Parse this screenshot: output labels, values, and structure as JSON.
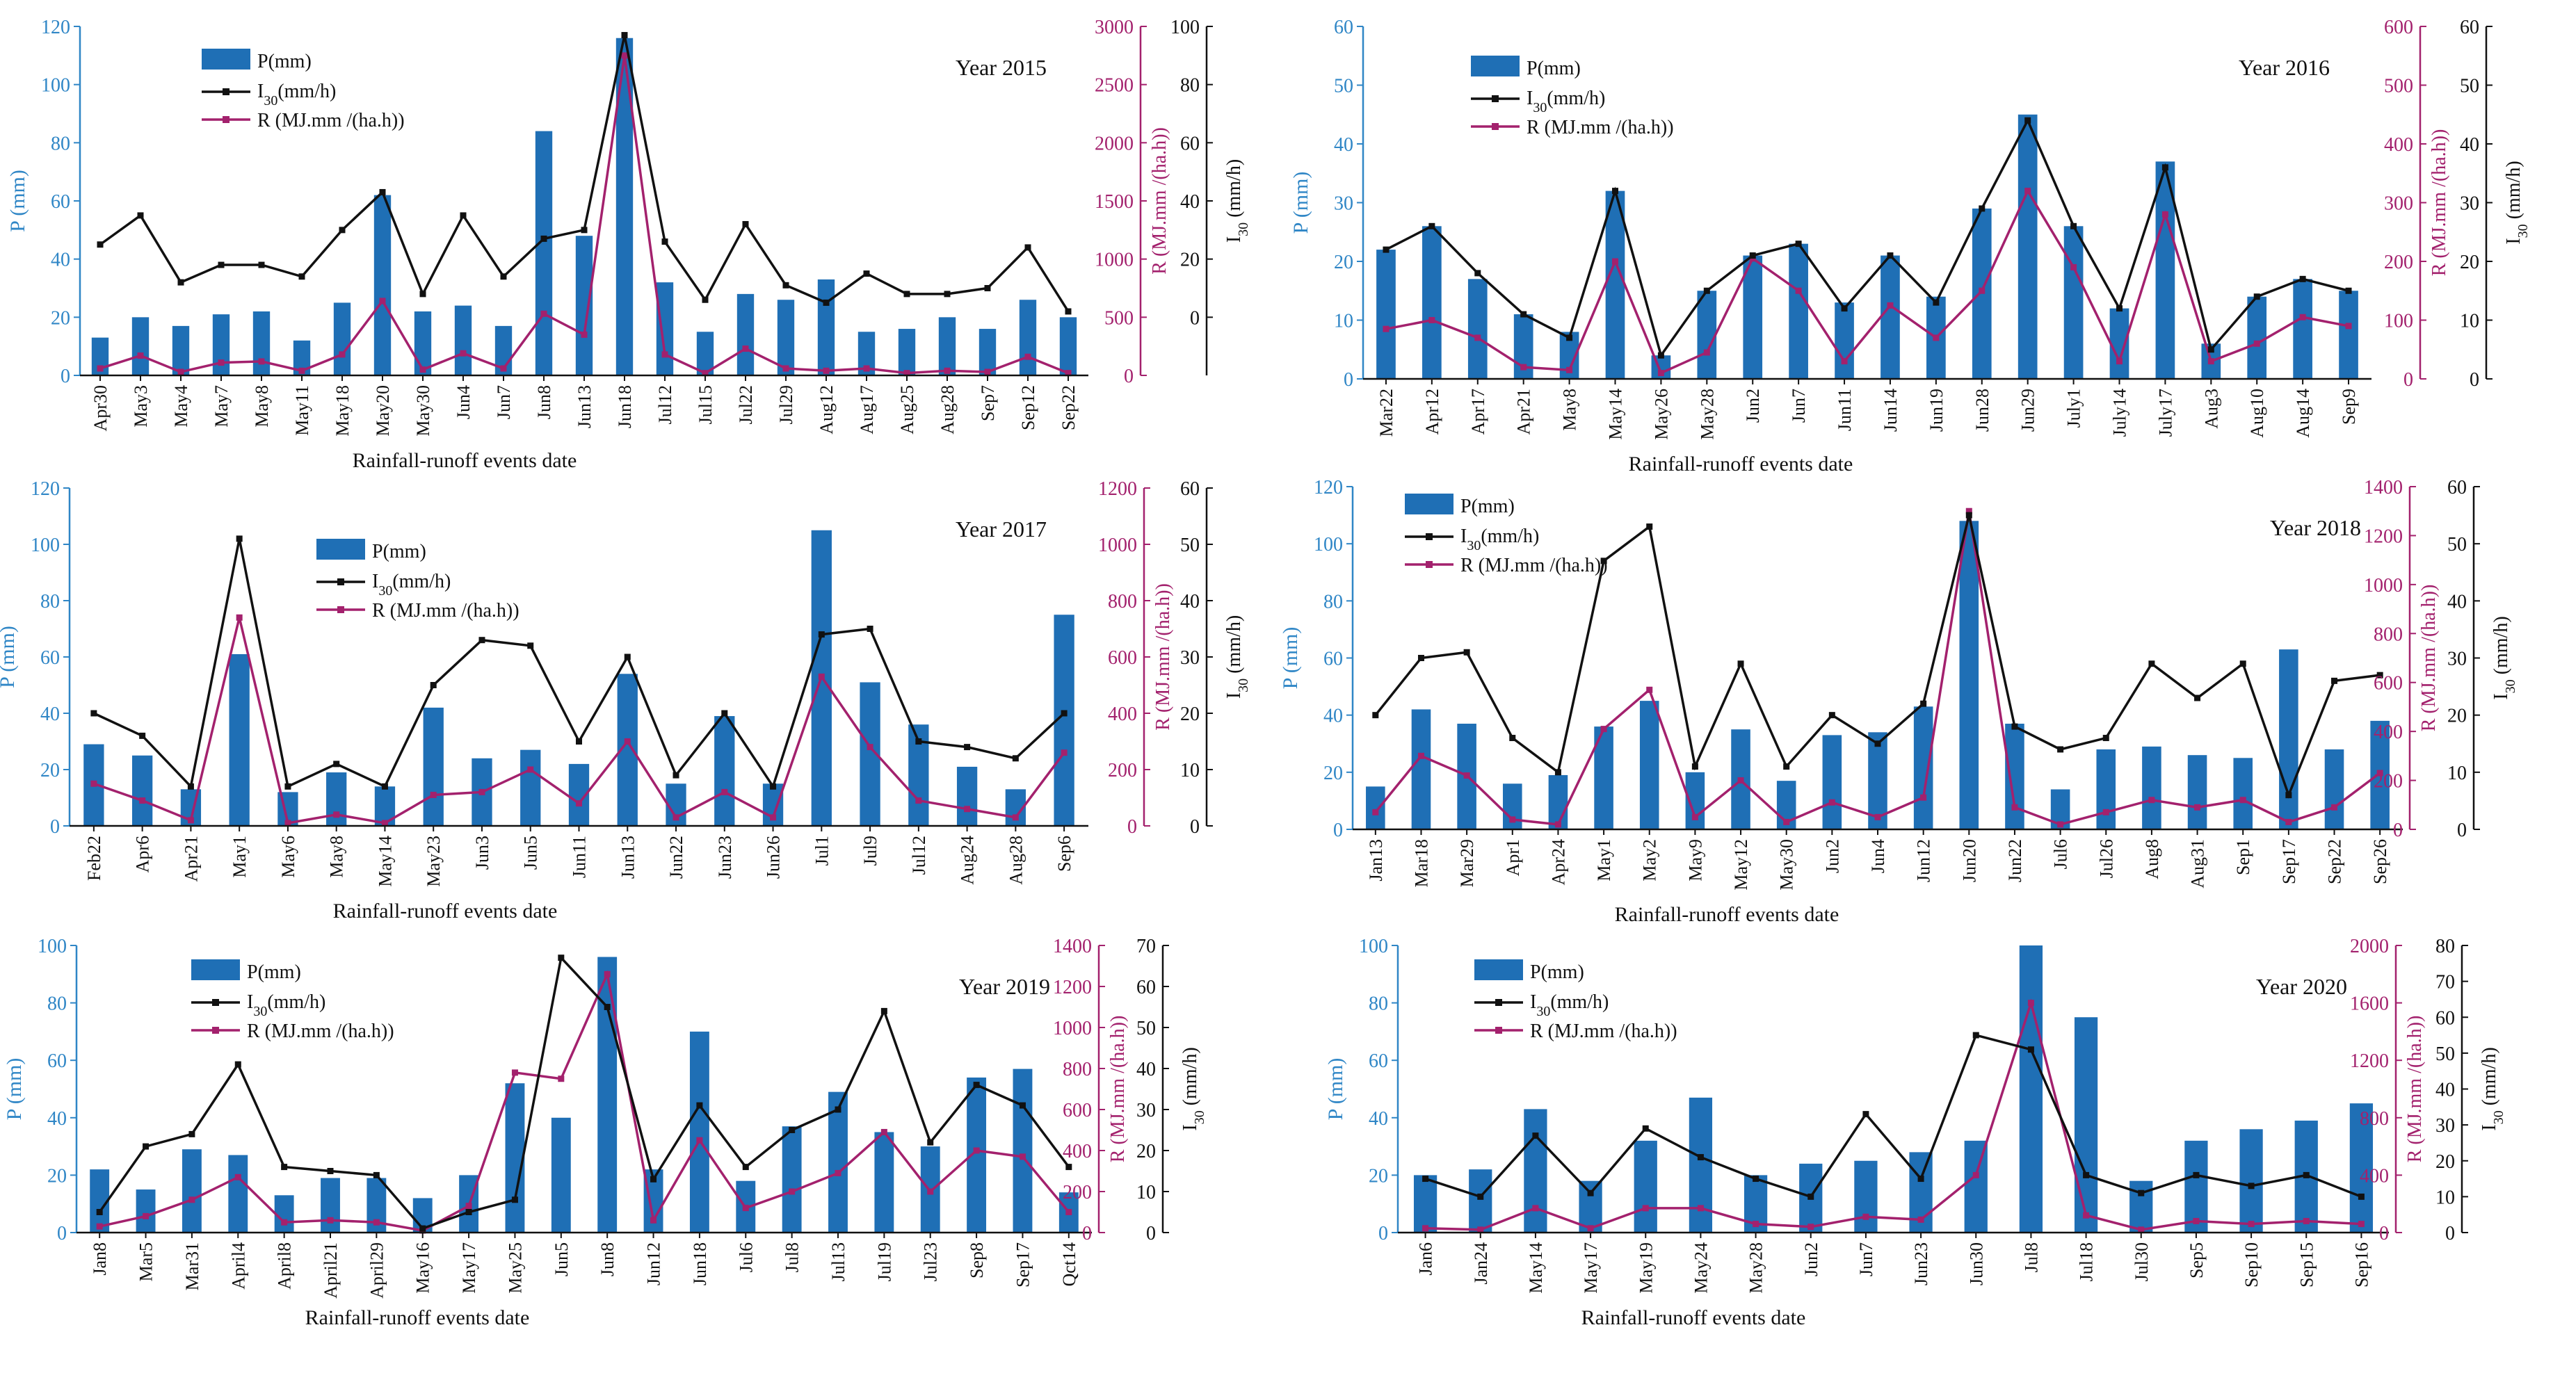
{
  "figure": {
    "legend_labels": {
      "p": "P(mm)",
      "i30_prefix": "I",
      "i30_sub": "30",
      "i30_suffix": "(mm/h)",
      "r": "R (MJ.mm /(ha.h))"
    },
    "axis_labels": {
      "p": "P (mm)",
      "r": "R (MJ.mm /(ha.h))",
      "i30_prefix": "I",
      "i30_sub": "30",
      "i30_suffix": " (mm/h)",
      "x": "Rainfall-runoff events date"
    },
    "colors": {
      "bar": "#1f6fb5",
      "i30": "#111111",
      "r": "#a3216d",
      "p_axis": "#2f86c6"
    }
  },
  "chart_data": [
    {
      "type": "bar",
      "title": "Year 2015",
      "xlabel": "Rainfall-runoff events date",
      "categories": [
        "Apr30",
        "May3",
        "May4",
        "May7",
        "May8",
        "May11",
        "May18",
        "May20",
        "May30",
        "Jun4",
        "Jun7",
        "Jun8",
        "Jun13",
        "Jun18",
        "Jul12",
        "Jul15",
        "Jul22",
        "Jul29",
        "Aug12",
        "Aug17",
        "Aug25",
        "Aug28",
        "Sep7",
        "Sep12",
        "Sep22"
      ],
      "ylim_p": [
        0,
        120
      ],
      "yticks_p": [
        0,
        20,
        40,
        60,
        80,
        100,
        120
      ],
      "ylim_r": [
        0,
        3000
      ],
      "yticks_r": [
        0,
        500,
        1000,
        1500,
        2000,
        2500,
        3000
      ],
      "ylim_i": [
        -20,
        100
      ],
      "yticks_i": [
        0,
        20,
        40,
        60,
        80,
        100
      ],
      "series": [
        {
          "name": "P(mm)",
          "values": [
            13,
            20,
            17,
            21,
            22,
            12,
            25,
            62,
            22,
            24,
            17,
            84,
            48,
            116,
            32,
            15,
            28,
            26,
            33,
            15,
            16,
            20,
            16,
            26,
            20
          ]
        },
        {
          "name": "I30(mm/h)",
          "values": [
            25,
            35,
            12,
            18,
            18,
            14,
            30,
            43,
            8,
            35,
            14,
            27,
            30,
            97,
            26,
            6,
            32,
            11,
            5,
            15,
            8,
            8,
            10,
            24,
            2
          ]
        },
        {
          "name": "R (MJ.mm /(ha.h))",
          "values": [
            60,
            170,
            30,
            110,
            120,
            40,
            180,
            640,
            50,
            190,
            60,
            530,
            350,
            2750,
            180,
            20,
            230,
            60,
            40,
            60,
            20,
            40,
            30,
            160,
            20
          ]
        }
      ]
    },
    {
      "type": "bar",
      "title": "Year 2016",
      "xlabel": "Rainfall-runoff events date",
      "categories": [
        "Mar22",
        "Apr12",
        "Apr17",
        "Apr21",
        "May8",
        "May14",
        "May26",
        "May28",
        "Jun2",
        "Jun7",
        "Jun11",
        "Jun14",
        "Jun19",
        "Jun28",
        "Jun29",
        "July1",
        "July14",
        "July17",
        "Aug3",
        "Aug10",
        "Aug14",
        "Sep9"
      ],
      "ylim_p": [
        0,
        60
      ],
      "yticks_p": [
        0,
        10,
        20,
        30,
        40,
        50,
        60
      ],
      "ylim_r": [
        0,
        600
      ],
      "yticks_r": [
        0,
        100,
        200,
        300,
        400,
        500,
        600
      ],
      "ylim_i": [
        0,
        60
      ],
      "yticks_i": [
        0,
        10,
        20,
        30,
        40,
        50,
        60
      ],
      "series": [
        {
          "name": "P(mm)",
          "values": [
            22,
            26,
            17,
            11,
            8,
            32,
            4,
            15,
            21,
            23,
            13,
            21,
            14,
            29,
            45,
            26,
            12,
            37,
            6,
            14,
            17,
            15
          ]
        },
        {
          "name": "I30(mm/h)",
          "values": [
            22,
            26,
            18,
            11,
            7,
            32,
            4,
            15,
            21,
            23,
            12,
            21,
            13,
            29,
            44,
            26,
            12,
            36,
            5,
            14,
            17,
            15
          ]
        },
        {
          "name": "R (MJ.mm /(ha.h))",
          "values": [
            85,
            100,
            70,
            20,
            15,
            200,
            10,
            45,
            205,
            150,
            30,
            125,
            70,
            150,
            320,
            190,
            30,
            280,
            30,
            60,
            105,
            90
          ]
        }
      ]
    },
    {
      "type": "bar",
      "title": "Year 2017",
      "xlabel": "Rainfall-runoff events date",
      "categories": [
        "Feb22",
        "Apr6",
        "Apr21",
        "May1",
        "May6",
        "May8",
        "May14",
        "May23",
        "Jun3",
        "Jun5",
        "Jun11",
        "Jun13",
        "Jun22",
        "Jun23",
        "Jun26",
        "Jul1",
        "Jul9",
        "Jul12",
        "Aug24",
        "Aug28",
        "Sep6"
      ],
      "ylim_p": [
        0,
        120
      ],
      "yticks_p": [
        0,
        20,
        40,
        60,
        80,
        100,
        120
      ],
      "ylim_r": [
        0,
        1200
      ],
      "yticks_r": [
        0,
        200,
        400,
        600,
        800,
        1000,
        1200
      ],
      "ylim_i": [
        0,
        60
      ],
      "yticks_i": [
        0,
        10,
        20,
        30,
        40,
        50,
        60
      ],
      "series": [
        {
          "name": "P(mm)",
          "values": [
            29,
            25,
            13,
            61,
            12,
            19,
            14,
            42,
            24,
            27,
            22,
            54,
            15,
            39,
            15,
            105,
            51,
            36,
            21,
            13,
            75
          ]
        },
        {
          "name": "I30(mm/h)",
          "values": [
            20,
            16,
            7,
            51,
            7,
            11,
            7,
            25,
            33,
            32,
            15,
            30,
            9,
            20,
            7,
            34,
            35,
            15,
            14,
            12,
            20
          ]
        },
        {
          "name": "R (MJ.mm /(ha.h))",
          "values": [
            150,
            90,
            20,
            740,
            10,
            40,
            10,
            110,
            120,
            200,
            80,
            300,
            30,
            120,
            30,
            530,
            280,
            90,
            60,
            30,
            260
          ]
        }
      ]
    },
    {
      "type": "bar",
      "title": "Year 2018",
      "xlabel": "Rainfall-runoff events date",
      "categories": [
        "Jan13",
        "Mar18",
        "Mar29",
        "Apr1",
        "Apr24",
        "May1",
        "May2",
        "May9",
        "May12",
        "May30",
        "Jun2",
        "Jun4",
        "Jun12",
        "Jun20",
        "Jun22",
        "Jul6",
        "Jul26",
        "Aug8",
        "Aug31",
        "Sep1",
        "Sep17",
        "Sep22",
        "Sep26"
      ],
      "ylim_p": [
        0,
        120
      ],
      "yticks_p": [
        0,
        20,
        40,
        60,
        80,
        100,
        120
      ],
      "ylim_r": [
        0,
        1400
      ],
      "yticks_r": [
        0,
        200,
        400,
        600,
        800,
        1000,
        1200,
        1400
      ],
      "ylim_i": [
        0,
        60
      ],
      "yticks_i": [
        0,
        10,
        20,
        30,
        40,
        50,
        60
      ],
      "series": [
        {
          "name": "P(mm)",
          "values": [
            15,
            42,
            37,
            16,
            19,
            36,
            45,
            20,
            35,
            17,
            33,
            34,
            43,
            108,
            37,
            14,
            28,
            29,
            26,
            25,
            63,
            28,
            38
          ]
        },
        {
          "name": "I30(mm/h)",
          "values": [
            20,
            30,
            31,
            16,
            10,
            47,
            53,
            11,
            29,
            11,
            20,
            15,
            22,
            55,
            18,
            14,
            16,
            29,
            23,
            29,
            6,
            26,
            27
          ]
        },
        {
          "name": "R (MJ.mm /(ha.h))",
          "values": [
            70,
            300,
            220,
            40,
            20,
            410,
            570,
            50,
            200,
            30,
            110,
            50,
            130,
            1300,
            90,
            20,
            70,
            120,
            90,
            120,
            30,
            90,
            230
          ]
        }
      ]
    },
    {
      "type": "bar",
      "title": "Year 2019",
      "xlabel": "Rainfall-runoff events date",
      "categories": [
        "Jan8",
        "Mar5",
        "Mar31",
        "April4",
        "April8",
        "April21",
        "April29",
        "May16",
        "May17",
        "May25",
        "Jun5",
        "Jun8",
        "Jun12",
        "Jun18",
        "Jul6",
        "Jul8",
        "Jul13",
        "Jul19",
        "Jul23",
        "Sep8",
        "Sep17",
        "Qct14"
      ],
      "ylim_p": [
        0,
        100
      ],
      "yticks_p": [
        0,
        20,
        40,
        60,
        80,
        100
      ],
      "ylim_r": [
        0,
        1400
      ],
      "yticks_r": [
        0,
        200,
        400,
        600,
        800,
        1000,
        1200,
        1400
      ],
      "ylim_i": [
        0,
        70
      ],
      "yticks_i": [
        0,
        10,
        20,
        30,
        40,
        50,
        60,
        70
      ],
      "series": [
        {
          "name": "P(mm)",
          "values": [
            22,
            15,
            29,
            27,
            13,
            19,
            19,
            12,
            20,
            52,
            40,
            96,
            22,
            70,
            18,
            37,
            49,
            35,
            30,
            54,
            57,
            14
          ]
        },
        {
          "name": "I30(mm/h)",
          "values": [
            5,
            21,
            24,
            41,
            16,
            15,
            14,
            1,
            5,
            8,
            67,
            55,
            13,
            31,
            16,
            25,
            30,
            54,
            22,
            36,
            31,
            16
          ]
        },
        {
          "name": "R (MJ.mm /(ha.h))",
          "values": [
            30,
            80,
            160,
            270,
            50,
            60,
            50,
            10,
            130,
            780,
            750,
            1260,
            60,
            450,
            120,
            200,
            290,
            490,
            200,
            400,
            370,
            100
          ]
        }
      ]
    },
    {
      "type": "bar",
      "title": "Year 2020",
      "xlabel": "Rainfall-runoff events date",
      "categories": [
        "Jan6",
        "Jan24",
        "May14",
        "May17",
        "May19",
        "May24",
        "May28",
        "Jun2",
        "Jun7",
        "Jun23",
        "Jun30",
        "Jul8",
        "Jul18",
        "Jul30",
        "Sep5",
        "Sep10",
        "Sep15",
        "Sep16"
      ],
      "ylim_p": [
        0,
        100
      ],
      "yticks_p": [
        0,
        20,
        40,
        60,
        80,
        100
      ],
      "ylim_r": [
        0,
        2000
      ],
      "yticks_r": [
        0,
        400,
        800,
        1200,
        1600,
        2000
      ],
      "ylim_i": [
        0,
        80
      ],
      "yticks_i": [
        0,
        10,
        20,
        30,
        40,
        50,
        60,
        70,
        80
      ],
      "series": [
        {
          "name": "P(mm)",
          "values": [
            20,
            22,
            43,
            18,
            32,
            47,
            20,
            24,
            25,
            28,
            32,
            100,
            75,
            18,
            32,
            36,
            39,
            45
          ]
        },
        {
          "name": "I30(mm/h)",
          "values": [
            15,
            10,
            27,
            11,
            29,
            21,
            15,
            10,
            33,
            15,
            55,
            51,
            16,
            11,
            16,
            13,
            16,
            10
          ]
        },
        {
          "name": "R (MJ.mm /(ha.h))",
          "values": [
            30,
            20,
            170,
            30,
            170,
            170,
            60,
            40,
            110,
            90,
            400,
            1600,
            120,
            20,
            80,
            60,
            80,
            60
          ]
        }
      ]
    }
  ]
}
